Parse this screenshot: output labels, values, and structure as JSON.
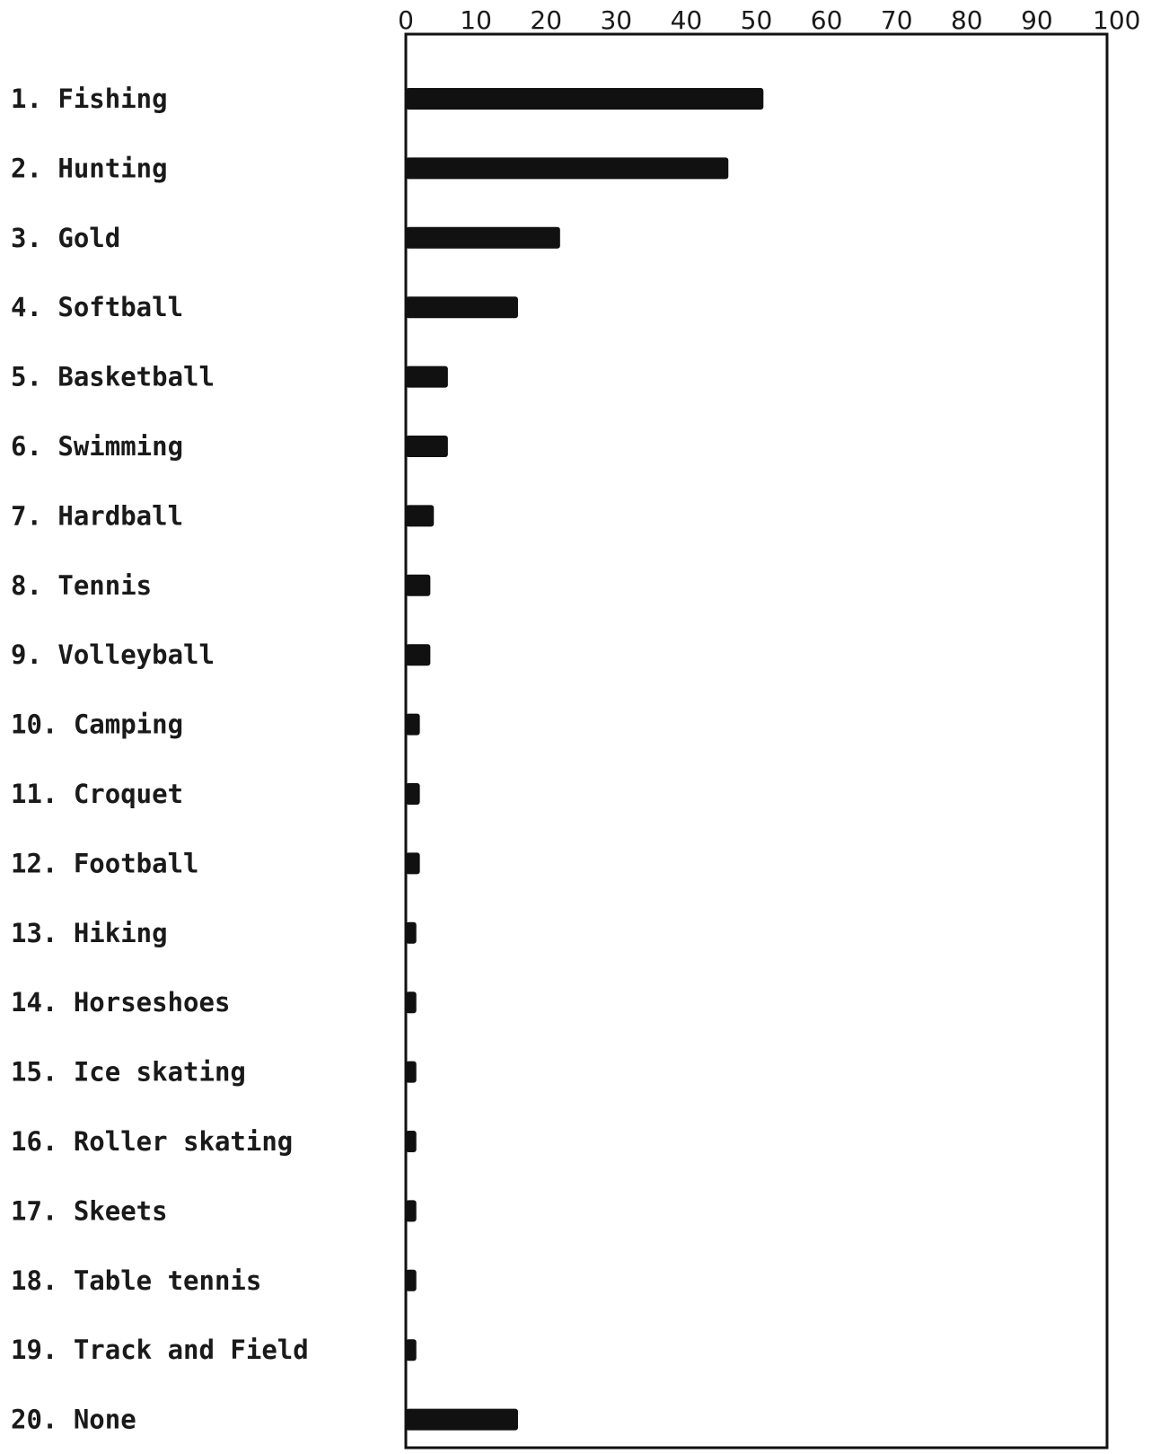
{
  "chart_data": {
    "type": "bar",
    "orientation": "horizontal",
    "title": "",
    "xlabel": "",
    "ylabel": "",
    "xlim": [
      0,
      100
    ],
    "x_ticks": [
      "0",
      "10",
      "20",
      "30",
      "40",
      "50",
      "60",
      "70",
      "80",
      "90",
      "100"
    ],
    "grid": false,
    "bar_color": "#111111",
    "categories": [
      "1. Fishing",
      "2. Hunting",
      "3. Gold",
      "4. Softball",
      "5. Basketball",
      "6. Swimming",
      "7. Hardball",
      "8. Tennis",
      "9. Volleyball",
      "10. Camping",
      "11. Croquet",
      "12. Football",
      "13. Hiking",
      "14. Horseshoes",
      "15. Ice skating",
      "16. Roller skating",
      "17. Skeets",
      "18. Table tennis",
      "19. Track and Field",
      "20. None"
    ],
    "values": [
      51,
      46,
      22,
      16,
      6,
      6,
      4,
      3.5,
      3.5,
      2,
      2,
      2,
      1.5,
      1.5,
      1.5,
      1.5,
      1.5,
      1.5,
      1.5,
      16
    ]
  }
}
